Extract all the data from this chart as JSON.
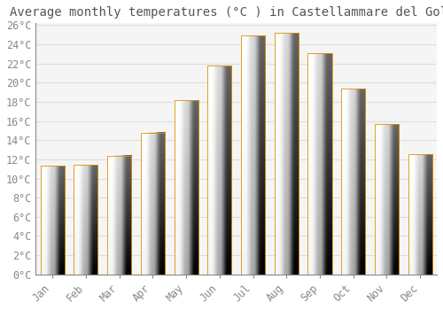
{
  "title": "Average monthly temperatures (°C ) in Castellammare del Golfo",
  "months": [
    "Jan",
    "Feb",
    "Mar",
    "Apr",
    "May",
    "Jun",
    "Jul",
    "Aug",
    "Sep",
    "Oct",
    "Nov",
    "Dec"
  ],
  "temperatures": [
    11.3,
    11.4,
    12.4,
    14.8,
    18.2,
    21.8,
    24.9,
    25.2,
    23.1,
    19.4,
    15.7,
    12.5
  ],
  "bar_color_bottom": "#F5A800",
  "bar_color_top": "#FFD966",
  "bar_edge_color": "#E09000",
  "ylim": [
    0,
    26
  ],
  "ytick_step": 2,
  "background_color": "#FFFFFF",
  "plot_bg_color": "#F5F5F5",
  "grid_color": "#DDDDDD",
  "title_fontsize": 10,
  "tick_fontsize": 8.5,
  "title_color": "#555555",
  "tick_color": "#888888",
  "font_family": "monospace"
}
